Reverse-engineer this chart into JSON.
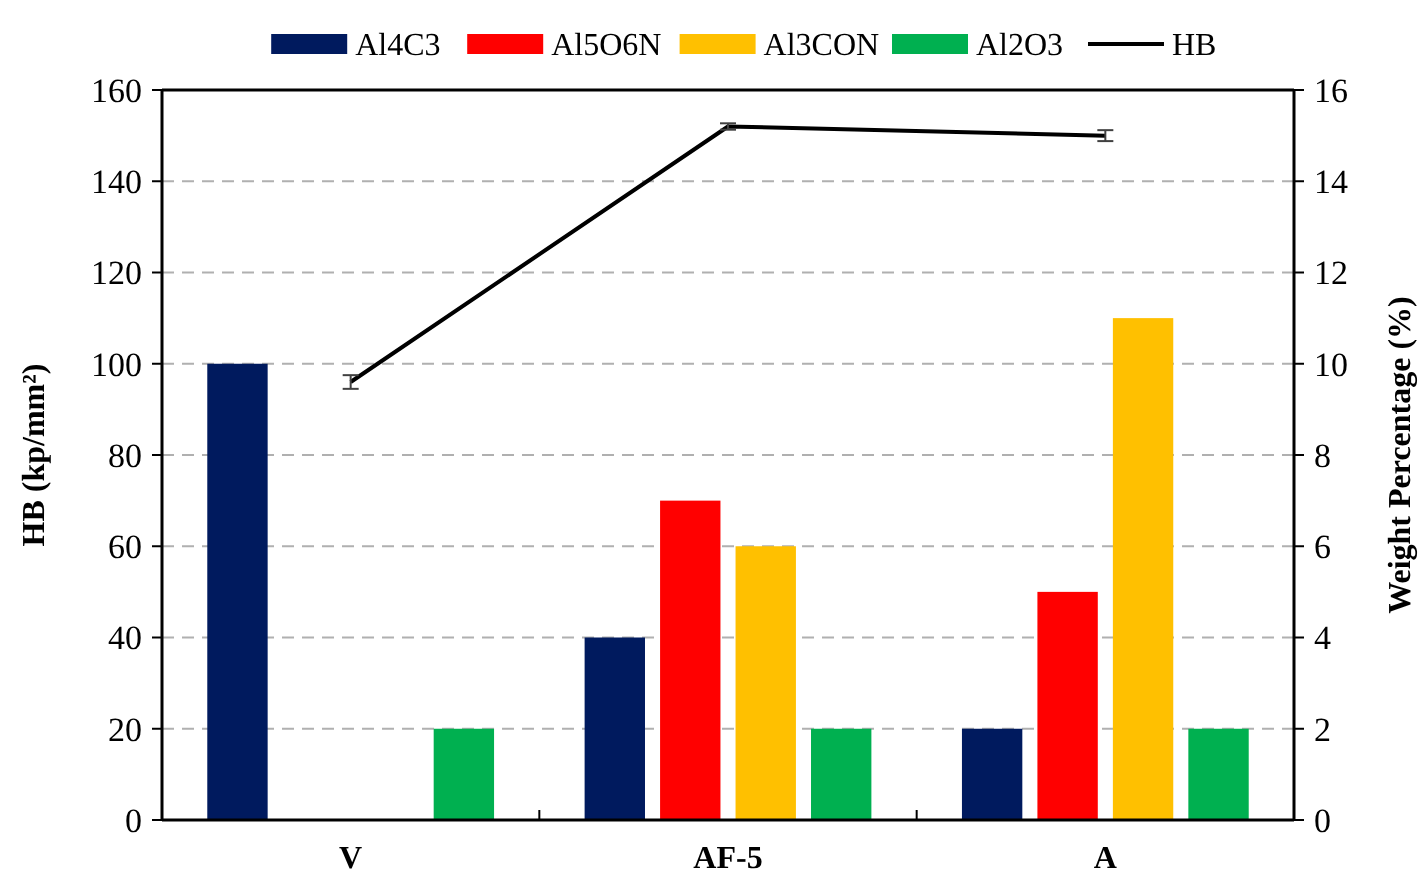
{
  "chart_data": {
    "type": "bar",
    "categories": [
      "V",
      "AF-5",
      "A"
    ],
    "ylabel": "HB (kp/mm²)",
    "y2label": "Weight Percentage (%)",
    "ylim": [
      0,
      160
    ],
    "yticks": [
      0,
      20,
      40,
      60,
      80,
      100,
      120,
      140,
      160
    ],
    "y2lim": [
      0,
      16
    ],
    "y2ticks": [
      0,
      2,
      4,
      6,
      8,
      10,
      12,
      14,
      16
    ],
    "grid": "y",
    "legend": "top",
    "series": [
      {
        "name": "Al4C3",
        "color": "#001a5e",
        "axis": "y2",
        "values": [
          10,
          4,
          2
        ]
      },
      {
        "name": "Al5O6N",
        "color": "#ff0000",
        "axis": "y2",
        "values": [
          0,
          7,
          5
        ]
      },
      {
        "name": "Al3CON",
        "color": "#ffc000",
        "axis": "y2",
        "values": [
          0,
          6,
          11
        ]
      },
      {
        "name": "Al2O3",
        "color": "#00b050",
        "axis": "y2",
        "values": [
          2,
          2,
          2
        ]
      },
      {
        "name": "HB",
        "type": "line",
        "color": "#000000",
        "axis": "y",
        "marker": "none",
        "values": [
          96,
          152,
          150
        ],
        "errors": [
          1.5,
          0.7,
          1.2
        ]
      }
    ]
  }
}
